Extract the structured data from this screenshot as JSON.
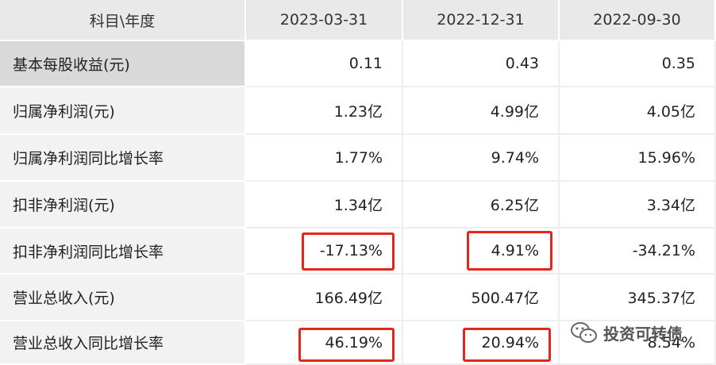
{
  "table": {
    "header": [
      "科目\\年度",
      "2023-03-31",
      "2022-12-31",
      "2022-09-30"
    ],
    "rows": [
      [
        "基本每股收益(元)",
        "0.11",
        "0.43",
        "0.35"
      ],
      [
        "归属净利润(元)",
        "1.23亿",
        "4.99亿",
        "4.05亿"
      ],
      [
        "归属净利润同比增长率",
        "1.77%",
        "9.74%",
        "15.96%"
      ],
      [
        "扣非净利润(元)",
        "1.34亿",
        "6.25亿",
        "3.34亿"
      ],
      [
        "扣非净利润同比增长率",
        "-17.13%",
        "4.91%",
        "-34.21%"
      ],
      [
        "营业总收入(元)",
        "166.49亿",
        "500.47亿",
        "345.37亿"
      ],
      [
        "营业总收入同比增长率",
        "46.19%",
        "20.94%",
        "8.54%"
      ]
    ]
  },
  "watermark": {
    "text": "投资可转债"
  }
}
